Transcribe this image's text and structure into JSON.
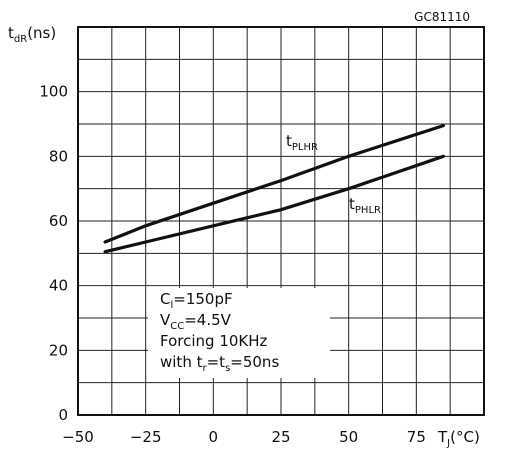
{
  "chart_data": {
    "type": "line",
    "code": "GC81110",
    "ylabel": {
      "main": "t",
      "sub": "dR",
      "unit": "(ns)"
    },
    "xlabel": {
      "main": "T",
      "sub": "J",
      "unit": "(°C)"
    },
    "xlim": [
      -50,
      100
    ],
    "ylim": [
      0,
      120
    ],
    "x_ticks": [
      "-50",
      "-25",
      "0",
      "25",
      "50",
      "75"
    ],
    "y_ticks": [
      "0",
      "20",
      "40",
      "60",
      "80",
      "100"
    ],
    "grid": true,
    "series": [
      {
        "name_main": "t",
        "name_sub": "PLHR",
        "x": [
          -40,
          -25,
          0,
          25,
          50,
          85
        ],
        "y": [
          53.5,
          58.5,
          65.5,
          72.5,
          80,
          89.5
        ]
      },
      {
        "name_main": "t",
        "name_sub": "PHLR",
        "x": [
          -40,
          -25,
          0,
          25,
          50,
          85
        ],
        "y": [
          50.5,
          53.5,
          58.5,
          63.5,
          70,
          80
        ]
      }
    ],
    "annotation": {
      "l1_main": "C",
      "l1_sub": "l",
      "l1_tail": "=150pF",
      "l2_main": "V",
      "l2_sub": "CC",
      "l2_tail": "=4.5V",
      "l3": "Forcing 10KHz",
      "l4_head": "with t",
      "l4_sub1": "r",
      "l4_mid": "=t",
      "l4_sub2": "s",
      "l4_tail": "=50ns"
    }
  }
}
